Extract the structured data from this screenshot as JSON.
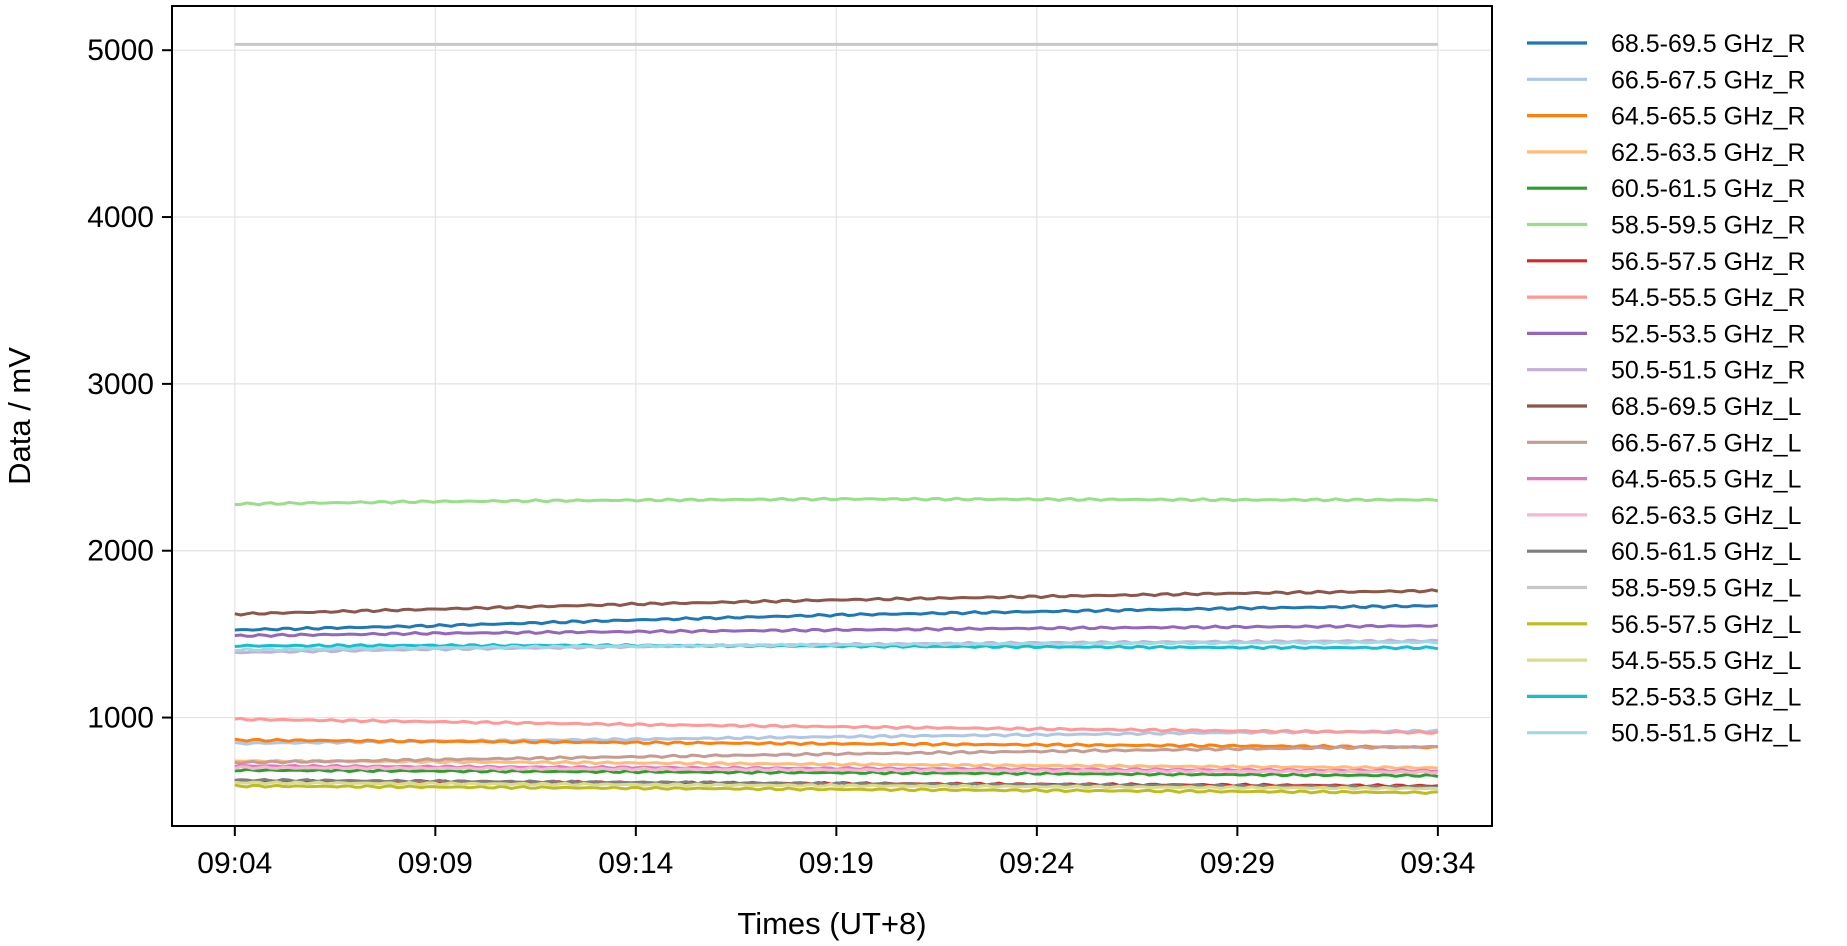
{
  "chart_data": {
    "type": "line",
    "xlabel": "Times (UT+8)",
    "ylabel": "Data / mV",
    "x_ticks": [
      "09:04",
      "09:09",
      "09:14",
      "09:19",
      "09:24",
      "09:29",
      "09:34"
    ],
    "y_ticks": [
      1000,
      2000,
      3000,
      4000,
      5000
    ],
    "xlim": [
      "09:02:26",
      "09:35:21"
    ],
    "ylim": [
      350,
      5265
    ],
    "x_start": "09:04",
    "x_end": "09:34",
    "grid": true,
    "legend_position": "outside-right",
    "series": [
      {
        "name": "68.5-69.5 GHz_R",
        "color": "#1f77b4",
        "values": [
          1525,
          1550,
          1585,
          1615,
          1635,
          1655,
          1670
        ]
      },
      {
        "name": "66.5-67.5 GHz_R",
        "color": "#aec7e8",
        "values": [
          845,
          858,
          870,
          885,
          897,
          910,
          920
        ]
      },
      {
        "name": "64.5-65.5 GHz_R",
        "color": "#ff7f0e",
        "values": [
          865,
          858,
          850,
          843,
          837,
          830,
          822
        ]
      },
      {
        "name": "62.5-63.5 GHz_R",
        "color": "#ffbb78",
        "values": [
          740,
          735,
          728,
          720,
          712,
          705,
          698
        ]
      },
      {
        "name": "60.5-61.5 GHz_R",
        "color": "#2ca02c",
        "values": [
          685,
          680,
          675,
          670,
          665,
          658,
          652
        ]
      },
      {
        "name": "58.5-59.5 GHz_R",
        "color": "#98df8a",
        "values": [
          2280,
          2295,
          2303,
          2310,
          2308,
          2305,
          2305
        ]
      },
      {
        "name": "56.5-57.5 GHz_R",
        "color": "#d62728",
        "values": [
          620,
          615,
          610,
          605,
          600,
          595,
          590
        ]
      },
      {
        "name": "54.5-55.5 GHz_R",
        "color": "#ff9896",
        "values": [
          990,
          975,
          958,
          945,
          932,
          920,
          910
        ]
      },
      {
        "name": "52.5-53.5 GHz_R",
        "color": "#9467bd",
        "values": [
          1490,
          1505,
          1515,
          1525,
          1535,
          1543,
          1550
        ]
      },
      {
        "name": "50.5-51.5 GHz_R",
        "color": "#c5b0d5",
        "values": [
          1390,
          1410,
          1425,
          1438,
          1448,
          1455,
          1460
        ]
      },
      {
        "name": "68.5-69.5 GHz_L",
        "color": "#8c564b",
        "values": [
          1620,
          1650,
          1680,
          1705,
          1725,
          1745,
          1760
        ]
      },
      {
        "name": "66.5-67.5 GHz_L",
        "color": "#c49c94",
        "values": [
          730,
          748,
          765,
          782,
          797,
          812,
          825
        ]
      },
      {
        "name": "64.5-65.5 GHz_L",
        "color": "#e377c2",
        "values": [
          710,
          705,
          700,
          695,
          690,
          685,
          680
        ]
      },
      {
        "name": "62.5-63.5 GHz_L",
        "color": "#f7b6d2",
        "values": [
          700,
          696,
          691,
          686,
          681,
          677,
          672
        ]
      },
      {
        "name": "60.5-61.5 GHz_L",
        "color": "#7f7f7f",
        "values": [
          625,
          618,
          611,
          604,
          597,
          590,
          583
        ]
      },
      {
        "name": "58.5-59.5 GHz_L",
        "color": "#c7c7c7",
        "values": [
          5035,
          5035,
          5035,
          5035,
          5035,
          5035,
          5035
        ]
      },
      {
        "name": "56.5-57.5 GHz_L",
        "color": "#bcbd22",
        "values": [
          590,
          584,
          577,
          570,
          563,
          557,
          550
        ]
      },
      {
        "name": "54.5-55.5 GHz_L",
        "color": "#dbdb8d",
        "values": [
          610,
          604,
          598,
          592,
          586,
          580,
          574
        ]
      },
      {
        "name": "52.5-53.5 GHz_L",
        "color": "#17becf",
        "values": [
          1430,
          1432,
          1432,
          1428,
          1424,
          1420,
          1418
        ]
      },
      {
        "name": "50.5-51.5 GHz_L",
        "color": "#9edae5",
        "values": [
          1405,
          1418,
          1428,
          1436,
          1442,
          1448,
          1452
        ]
      }
    ]
  }
}
